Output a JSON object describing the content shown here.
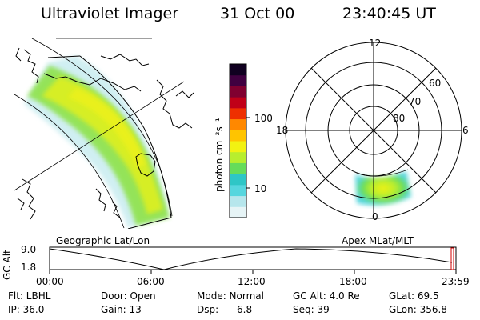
{
  "header": {
    "instrument": "Ultraviolet Imager",
    "date": "31 Oct 00",
    "time": "23:40:45 UT"
  },
  "colorbar": {
    "unit_label": "photon cm⁻²s⁻¹",
    "tick_100": "100",
    "tick_10": "10",
    "colors": [
      "#e6f4f6",
      "#b6e6ec",
      "#56d6de",
      "#2ec6c6",
      "#66dc5a",
      "#b8ee2e",
      "#f2f212",
      "#ffc400",
      "#ff8800",
      "#ee3000",
      "#c00018",
      "#800030",
      "#400040",
      "#100020"
    ]
  },
  "geo_panel": {
    "label": "Geographic Lat/Lon"
  },
  "polar_panel": {
    "label": "Apex MLat/MLT",
    "mlt_top": "12",
    "mlt_bottom": "0",
    "mlt_left": "18",
    "mlt_right": "6",
    "lat_60": "60",
    "lat_70": "70",
    "lat_80": "80"
  },
  "alt_plot": {
    "ylabel": "GC Alt",
    "ymax": "9.0",
    "ymin": "1.8",
    "xticks": [
      "00:00",
      "06:00",
      "12:00",
      "18:00",
      "23:59"
    ]
  },
  "info": {
    "filter": "Flt: LBHL",
    "door": "Door: Open",
    "mode": "Mode: Normal",
    "gc_alt": "GC Alt: 4.0 Re",
    "glat": "GLat:  69.5",
    "ip": "IP: 36.0",
    "gain": "Gain: 13",
    "dsp": "Dsp:      6.8",
    "seq": "Seq: 39",
    "glon": "GLon: 356.8"
  }
}
